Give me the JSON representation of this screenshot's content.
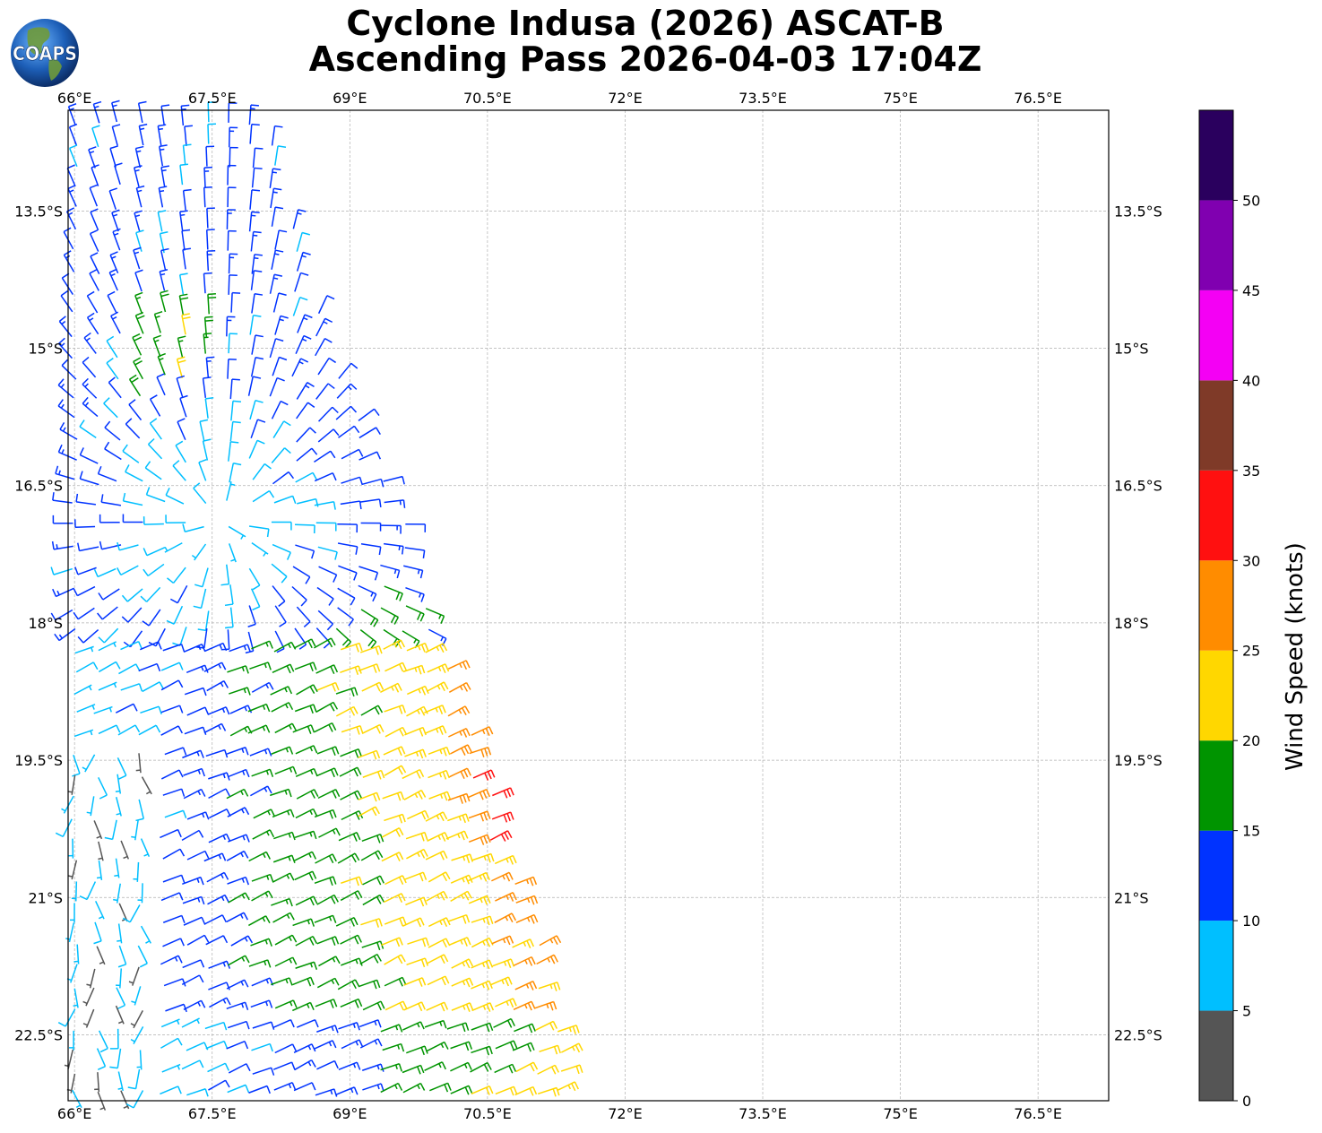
{
  "title": {
    "line1": "Cyclone Indusa (2026) ASCAT-B",
    "line2": "Ascending Pass 2026-04-03 17:04Z"
  },
  "logo": {
    "text": "COAPS"
  },
  "map": {
    "lon_ticks": [
      "66°E",
      "67.5°E",
      "69°E",
      "70.5°E",
      "72°E",
      "73.5°E",
      "75°E",
      "76.5°E"
    ],
    "lat_ticks": [
      "13.5°S",
      "15°S",
      "16.5°S",
      "18°S",
      "19.5°S",
      "21°S",
      "22.5°S"
    ],
    "lon_values": [
      66,
      67.5,
      69,
      70.5,
      72,
      73.5,
      75,
      76.5
    ],
    "lat_values": [
      -13.5,
      -15,
      -16.5,
      -18,
      -19.5,
      -21,
      -22.5
    ],
    "lon_range": [
      65.93,
      77.27
    ],
    "lat_range": [
      -23.22,
      -12.4
    ],
    "grid": true
  },
  "colorbar": {
    "label": "Wind Speed (knots)",
    "ticks": [
      "0",
      "5",
      "10",
      "15",
      "20",
      "25",
      "30",
      "35",
      "40",
      "45",
      "50"
    ],
    "bins": [
      {
        "min": 0,
        "max": 5,
        "color": "#555555"
      },
      {
        "min": 5,
        "max": 10,
        "color": "#00bfff"
      },
      {
        "min": 10,
        "max": 15,
        "color": "#0033ff"
      },
      {
        "min": 15,
        "max": 20,
        "color": "#009400"
      },
      {
        "min": 20,
        "max": 25,
        "color": "#ffd700"
      },
      {
        "min": 25,
        "max": 30,
        "color": "#ff8c00"
      },
      {
        "min": 30,
        "max": 35,
        "color": "#ff1010"
      },
      {
        "min": 35,
        "max": 40,
        "color": "#7f3a28"
      },
      {
        "min": 40,
        "max": 45,
        "color": "#f400f4"
      },
      {
        "min": 45,
        "max": 50,
        "color": "#8000b0"
      },
      {
        "min": 50,
        "max": 55,
        "color": "#2a005e"
      }
    ]
  },
  "chart_data": {
    "type": "scatter",
    "title": "Cyclone Indusa (2026) ASCAT-B Ascending Pass 2026-04-03 17:04Z",
    "xlabel": "",
    "ylabel": "",
    "xlim": [
      65.93,
      77.27
    ],
    "ylim": [
      -23.22,
      -12.4
    ],
    "value_label": "Wind Speed (knots)",
    "swath_edge": {
      "east_lon_at_lat": [
        [
          -12.45,
          68.1
        ],
        [
          -15.0,
          68.8
        ],
        [
          -16.6,
          69.5
        ],
        [
          -18.2,
          70.0
        ],
        [
          -19.6,
          70.5
        ],
        [
          -21.0,
          70.9
        ],
        [
          -23.2,
          71.5
        ]
      ]
    },
    "wind_field": {
      "description_regions": [
        {
          "lat_range": [
            -12.4,
            -14.5
          ],
          "lon_range": [
            66.0,
            68.3
          ],
          "speed_kt": [
            5,
            15
          ],
          "dir_from_deg": 240
        },
        {
          "lat_range": [
            -14.5,
            -16.5
          ],
          "lon_range": [
            66.0,
            69.5
          ],
          "speed_kt": [
            5,
            18
          ],
          "dir_from_deg": 220
        },
        {
          "lat_range": [
            -16.5,
            -18.5
          ],
          "lon_range": [
            66.0,
            70.0
          ],
          "speed_kt": [
            8,
            19
          ],
          "dir_from_deg": 300
        },
        {
          "lat_range": [
            -18.5,
            -20.5
          ],
          "lon_range": [
            67.5,
            70.5
          ],
          "speed_kt": [
            15,
            29
          ],
          "dir_from_deg": 70
        },
        {
          "lat_range": [
            -20.5,
            -23.2
          ],
          "lon_range": [
            67.0,
            71.3
          ],
          "speed_kt": [
            12,
            25
          ],
          "dir_from_deg": 60
        },
        {
          "lat_range": [
            -19.5,
            -22.5
          ],
          "lon_range": [
            66.0,
            67.0
          ],
          "speed_kt": [
            2,
            9
          ],
          "dir_from_deg": 150
        }
      ]
    }
  }
}
